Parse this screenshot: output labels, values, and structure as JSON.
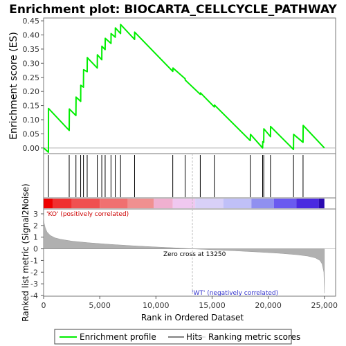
{
  "chart_data": {
    "type": "line",
    "title": "Enrichment plot: BIOCARTA_CELLCYCLE_PATHWAY",
    "enrichment_panel": {
      "ylabel": "Enrichment score (ES)",
      "ylim": [
        -0.02,
        0.46
      ],
      "yticks": [
        "0.00",
        "0.05",
        "0.10",
        "0.15",
        "0.20",
        "0.25",
        "0.30",
        "0.35",
        "0.40",
        "0.45"
      ],
      "ytick_values": [
        0.0,
        0.05,
        0.1,
        0.15,
        0.2,
        0.25,
        0.3,
        0.35,
        0.4,
        0.45
      ],
      "series": [
        {
          "name": "Enrichment profile",
          "color": "#00ee00",
          "x": [
            0,
            430,
            440,
            2280,
            2290,
            2880,
            2890,
            3300,
            3310,
            3550,
            3560,
            3880,
            3890,
            4780,
            4790,
            5180,
            5190,
            5480,
            5490,
            6000,
            6010,
            6380,
            6390,
            6850,
            6860,
            8100,
            8110,
            11500,
            11520,
            12600,
            12620,
            13950,
            13970,
            15200,
            15220,
            18400,
            18420,
            19500,
            19510,
            19600,
            19610,
            20200,
            20210,
            22250,
            22260,
            23100,
            23110,
            25000
          ],
          "y": [
            0.0,
            -0.015,
            0.14,
            0.062,
            0.138,
            0.115,
            0.18,
            0.165,
            0.222,
            0.215,
            0.277,
            0.27,
            0.32,
            0.283,
            0.33,
            0.312,
            0.36,
            0.348,
            0.388,
            0.37,
            0.405,
            0.392,
            0.425,
            0.405,
            0.437,
            0.384,
            0.41,
            0.271,
            0.283,
            0.245,
            0.24,
            0.19,
            0.195,
            0.145,
            0.152,
            0.026,
            0.048,
            0.0,
            0.022,
            0.02,
            0.068,
            0.04,
            0.076,
            -0.005,
            0.048,
            0.02,
            0.08,
            0.0
          ]
        }
      ]
    },
    "hits": [
      430,
      2280,
      2880,
      3300,
      3550,
      3880,
      4780,
      5180,
      5480,
      6000,
      6380,
      6850,
      8100,
      11500,
      12600,
      13950,
      15200,
      18400,
      19500,
      19600,
      20200,
      22250,
      23100
    ],
    "metric_panel": {
      "ylabel": "Ranked list metric (Signal2Noise)",
      "ylim": [
        -4,
        3
      ],
      "yticks": [
        "3",
        "2",
        "1",
        "0",
        "-1",
        "-2",
        "-3",
        "-4"
      ],
      "ytick_values": [
        3,
        2,
        1,
        0,
        -1,
        -2,
        -3,
        -4
      ],
      "pos_label": "'KO' (positively correlated)",
      "neg_label": "'WT' (negatively correlated)",
      "zero_cross_label": "Zero cross at 13250",
      "zero_cross": 13250,
      "profile_x": [
        0,
        50,
        150,
        300,
        600,
        1000,
        1500,
        2500,
        4000,
        6000,
        8000,
        10000,
        12000,
        13250,
        15000,
        17000,
        19000,
        21000,
        22500,
        23500,
        24200,
        24600,
        24800,
        24950,
        25000
      ],
      "profile_y": [
        2.8,
        2.2,
        1.8,
        1.45,
        1.15,
        0.95,
        0.82,
        0.66,
        0.52,
        0.38,
        0.26,
        0.16,
        0.07,
        0.0,
        -0.08,
        -0.17,
        -0.27,
        -0.38,
        -0.5,
        -0.62,
        -0.78,
        -1.0,
        -1.3,
        -2.0,
        -3.8
      ]
    },
    "xlabel": "Rank in Ordered Dataset",
    "xlim": [
      0,
      26000
    ],
    "xticks": [
      "0",
      "5,000",
      "10,000",
      "15,000",
      "20,000",
      "25,000"
    ],
    "xtick_values": [
      0,
      5000,
      10000,
      15000,
      20000,
      25000
    ],
    "colorbar_colors": [
      "#ee0000",
      "#f03030",
      "#f05050",
      "#f07070",
      "#f09090",
      "#f0b0d0",
      "#f0c8f0",
      "#d8d0f8",
      "#c0c0f8",
      "#9090f0",
      "#6a5af0",
      "#4a2ae0",
      "#2a0ab0"
    ],
    "colorbar_stops": [
      0,
      800,
      2500,
      5000,
      7500,
      9800,
      11500,
      13500,
      16000,
      18500,
      20500,
      22500,
      24500,
      25000
    ],
    "colors": {
      "profile": "#00ee00",
      "hits": "#000000",
      "metric_fill": "#b0b0b0",
      "zero_line": "#c0c0c0",
      "pos_label": "#cc0000",
      "neg_label": "#3333cc"
    },
    "legend": {
      "entries": [
        "Enrichment profile",
        "Hits",
        "Ranking metric scores"
      ],
      "placement": "bottom"
    }
  }
}
